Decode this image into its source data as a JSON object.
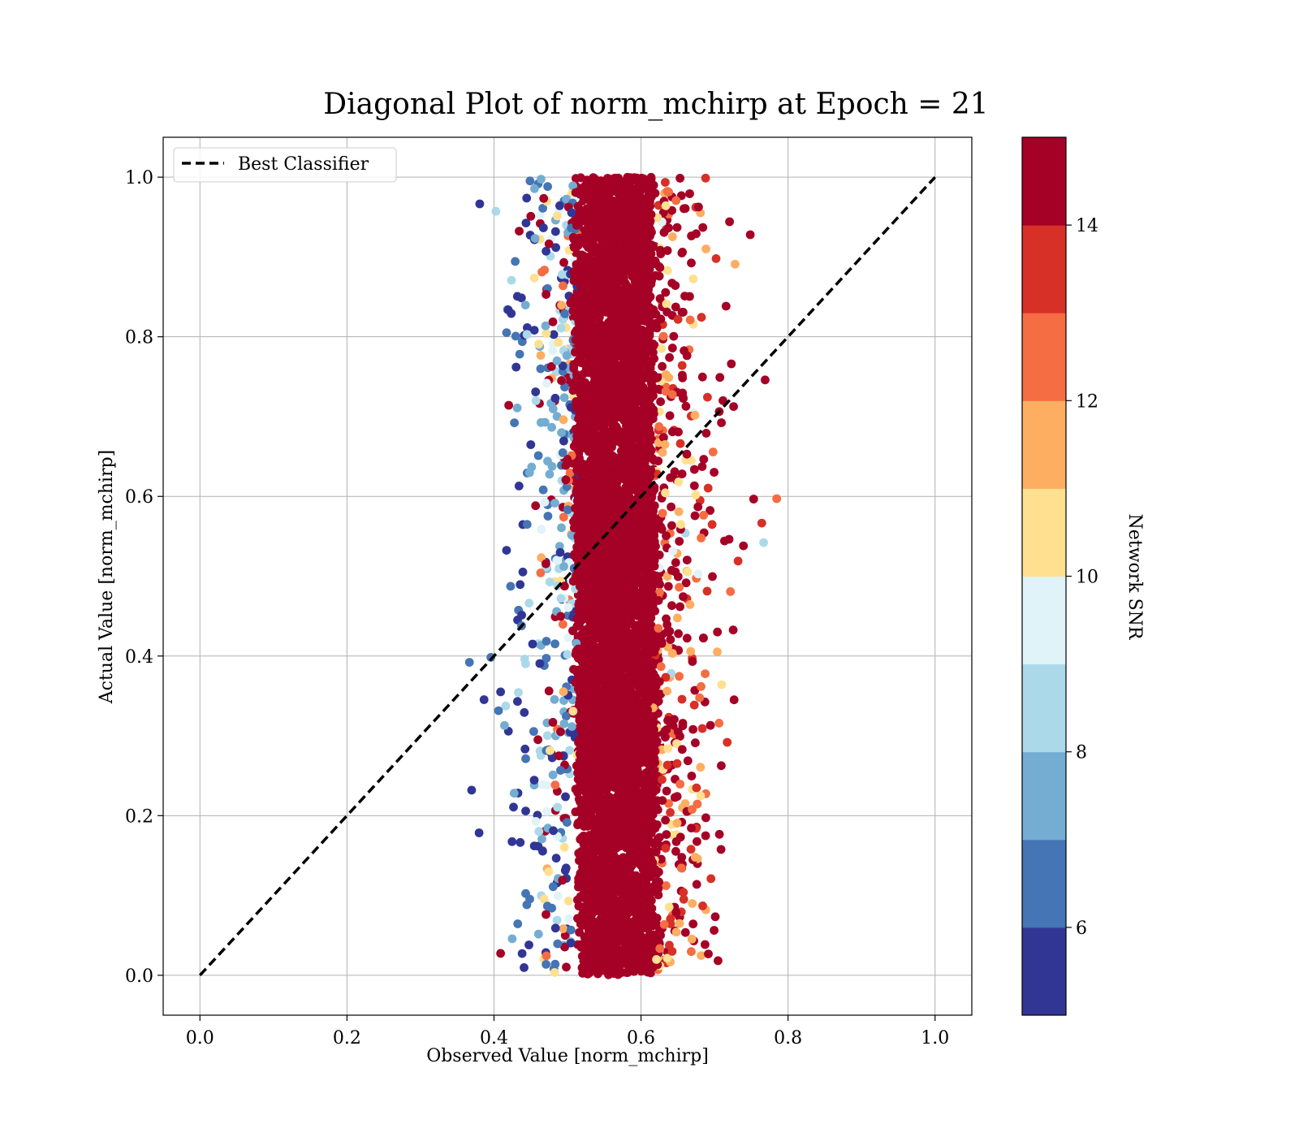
{
  "chart_data": {
    "type": "scatter",
    "title": "Diagonal Plot of norm_mchirp at Epoch = 21",
    "xlabel": "Observed Value [norm_mchirp]",
    "ylabel": "Actual Value [norm_mchirp]",
    "xlim": [
      -0.05,
      1.05
    ],
    "ylim": [
      -0.05,
      1.05
    ],
    "x_ticks": [
      "0.0",
      "0.2",
      "0.4",
      "0.6",
      "0.8",
      "1.0"
    ],
    "y_ticks": [
      "0.0",
      "0.2",
      "0.4",
      "0.6",
      "0.8",
      "1.0"
    ],
    "grid": true,
    "legend": {
      "location": "upper left",
      "entries": [
        {
          "label": "Best Classifier",
          "style": "dashed",
          "color": "#000000"
        }
      ]
    },
    "reference_line": {
      "name": "Best Classifier",
      "x": [
        0.0,
        1.0
      ],
      "y": [
        0.0,
        1.0
      ],
      "style": "dashed",
      "color": "#000000"
    },
    "point_color_by": "Network SNR",
    "colorbar": {
      "label": "Network SNR",
      "range": [
        5,
        15
      ],
      "ticks": [
        "6",
        "8",
        "10",
        "12",
        "14"
      ],
      "tick_values": [
        6,
        8,
        10,
        12,
        14
      ],
      "colors": [
        "#313695",
        "#4575b4",
        "#74add1",
        "#abd9e9",
        "#e0f3f8",
        "#fee090",
        "#fdae61",
        "#f46d43",
        "#d73027",
        "#a50026"
      ]
    },
    "point_distribution": {
      "x_center": 0.565,
      "x_core_spread": 0.045,
      "x_outer_spread": 0.09,
      "x_range": [
        0.355,
        0.795
      ],
      "y_range": [
        0.0,
        1.0
      ],
      "dominant_snr": "above 14",
      "low_snr_side": "left (x 0.40-0.50)"
    }
  }
}
